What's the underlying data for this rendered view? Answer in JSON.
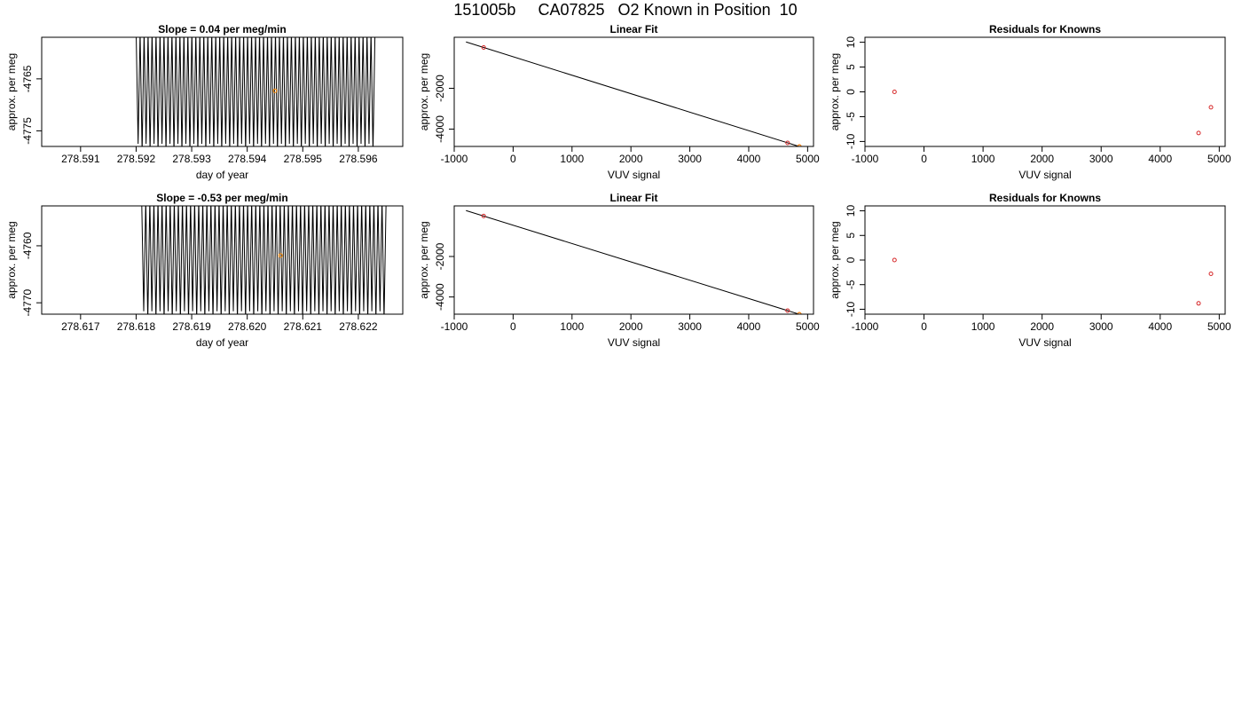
{
  "title": "151005b     CA07825   O2 Known in Position  10",
  "colors": {
    "trace": "#000000",
    "fit_line": "#000000",
    "point": "#d62728",
    "highlight": "#ff8c00"
  },
  "chart_data": [
    {
      "type": "line",
      "title": "Slope =  0.04  per meg/min",
      "xlabel": "day of year",
      "ylabel": "approx. per meg",
      "xlim": [
        278.5903,
        278.5968
      ],
      "ylim": [
        -4778,
        -4757
      ],
      "xticks": [
        "278.591",
        "278.592",
        "278.593",
        "278.594",
        "278.595",
        "278.596"
      ],
      "xtick_values": [
        278.591,
        278.592,
        278.593,
        278.594,
        278.595,
        278.596
      ],
      "yticks": [
        "-4765",
        "-4775"
      ],
      "ytick_values": [
        -4765,
        -4775
      ],
      "trace": {
        "x_start": 278.592,
        "x_end": 278.5963,
        "cycles": 60,
        "low": -4779,
        "high": -4756
      },
      "marker": {
        "x": 278.5945,
        "y": -4767.3
      }
    },
    {
      "type": "scatter",
      "title": "Linear Fit",
      "xlabel": "VUV signal",
      "ylabel": "approx. per meg",
      "xlim": [
        -1000,
        5100
      ],
      "ylim": [
        -4850,
        500
      ],
      "xticks": [
        "-1000",
        "0",
        "1000",
        "2000",
        "3000",
        "4000",
        "5000"
      ],
      "xtick_values": [
        -1000,
        0,
        1000,
        2000,
        3000,
        4000,
        5000
      ],
      "yticks": [
        "-2000",
        "-4000"
      ],
      "yticks_values": [
        -2000,
        -4000
      ],
      "points": [
        {
          "x": -500,
          "y": 0
        },
        {
          "x": 4660,
          "y": -4675
        },
        {
          "x": 4860,
          "y": -4855
        }
      ],
      "highlight": {
        "x": 4860,
        "y": -4855
      },
      "fit": {
        "x": [
          -800,
          4860
        ],
        "y": [
          270,
          -4855
        ]
      }
    },
    {
      "type": "scatter",
      "title": "Residuals for Knowns",
      "xlabel": "VUV signal",
      "ylabel": "approx. per meg",
      "xlim": [
        -1000,
        5100
      ],
      "ylim": [
        -11,
        11
      ],
      "xticks": [
        "-1000",
        "0",
        "1000",
        "2000",
        "3000",
        "4000",
        "5000"
      ],
      "xtick_values": [
        -1000,
        0,
        1000,
        2000,
        3000,
        4000,
        5000
      ],
      "yticks": [
        "10",
        "5",
        "0",
        "-5",
        "-10"
      ],
      "yticks_values": [
        10,
        5,
        0,
        -5,
        -10
      ],
      "points": [
        {
          "x": -500,
          "y": 0
        },
        {
          "x": 4650,
          "y": -8.3
        },
        {
          "x": 4860,
          "y": -3.1
        }
      ]
    },
    {
      "type": "line",
      "title": "Slope =  -0.53  per meg/min",
      "xlabel": "day of year",
      "ylabel": "approx. per meg",
      "xlim": [
        278.6163,
        278.6228
      ],
      "ylim": [
        -4772,
        -4753
      ],
      "xticks": [
        "278.617",
        "278.618",
        "278.619",
        "278.620",
        "278.621",
        "278.622"
      ],
      "xtick_values": [
        278.617,
        278.618,
        278.619,
        278.62,
        278.621,
        278.622
      ],
      "yticks": [
        "-4760",
        "-4770"
      ],
      "ytick_values": [
        -4760,
        -4770
      ],
      "trace": {
        "x_start": 278.6181,
        "x_end": 278.6225,
        "cycles": 60,
        "low": -4773,
        "high": -4752
      },
      "marker": {
        "x": 278.6206,
        "y": -4761.7
      }
    },
    {
      "type": "scatter",
      "title": "Linear Fit",
      "xlabel": "VUV signal",
      "ylabel": "approx. per meg",
      "xlim": [
        -1000,
        5100
      ],
      "ylim": [
        -4850,
        500
      ],
      "xticks": [
        "-1000",
        "0",
        "1000",
        "2000",
        "3000",
        "4000",
        "5000"
      ],
      "xtick_values": [
        -1000,
        0,
        1000,
        2000,
        3000,
        4000,
        5000
      ],
      "yticks": [
        "-2000",
        "-4000"
      ],
      "yticks_values": [
        -2000,
        -4000
      ],
      "points": [
        {
          "x": -500,
          "y": 0
        },
        {
          "x": 4660,
          "y": -4675
        },
        {
          "x": 4860,
          "y": -4855
        }
      ],
      "highlight": {
        "x": 4860,
        "y": -4855
      },
      "fit": {
        "x": [
          -800,
          4860
        ],
        "y": [
          270,
          -4855
        ]
      }
    },
    {
      "type": "scatter",
      "title": "Residuals for Knowns",
      "xlabel": "VUV signal",
      "ylabel": "approx. per meg",
      "xlim": [
        -1000,
        5100
      ],
      "ylim": [
        -11,
        11
      ],
      "xticks": [
        "-1000",
        "0",
        "1000",
        "2000",
        "3000",
        "4000",
        "5000"
      ],
      "xtick_values": [
        -1000,
        0,
        1000,
        2000,
        3000,
        4000,
        5000
      ],
      "yticks": [
        "10",
        "5",
        "0",
        "-5",
        "-10"
      ],
      "yticks_values": [
        10,
        5,
        0,
        -5,
        -10
      ],
      "points": [
        {
          "x": -500,
          "y": 0
        },
        {
          "x": 4650,
          "y": -8.8
        },
        {
          "x": 4860,
          "y": -2.8
        }
      ]
    }
  ]
}
